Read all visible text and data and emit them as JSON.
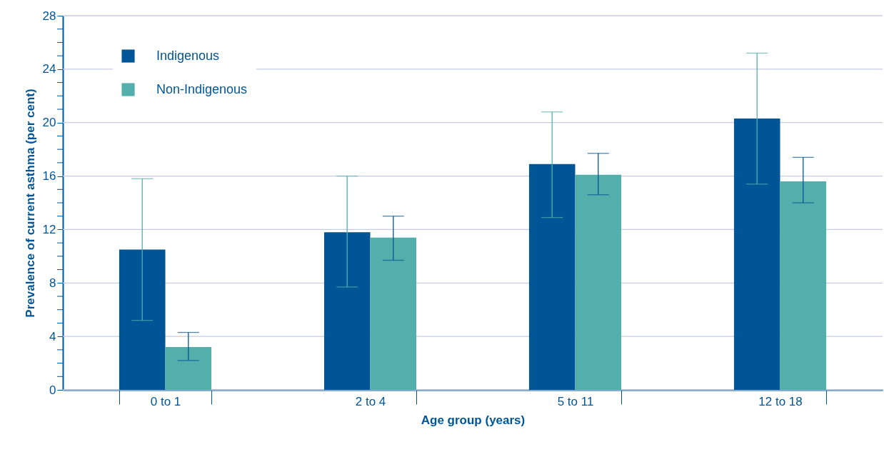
{
  "chart_data": {
    "type": "bar",
    "xlabel": "Age group (years)",
    "ylabel": "Prevalence of current asthma (per cent)",
    "categories": [
      "0 to 1",
      "2 to 4",
      "5 to 11",
      "12 to 18"
    ],
    "series": [
      {
        "name": "Indigenous",
        "color": "#005596",
        "values": [
          10.5,
          11.8,
          16.9,
          20.3
        ],
        "errors": [
          [
            5.2,
            15.8
          ],
          [
            7.7,
            16.0
          ],
          [
            12.9,
            20.8
          ],
          [
            15.4,
            25.2
          ]
        ]
      },
      {
        "name": "Non-Indigenous",
        "color": "#52afab",
        "values": [
          3.2,
          11.4,
          16.1,
          15.6
        ],
        "errors": [
          [
            2.2,
            4.3
          ],
          [
            9.7,
            13.0
          ],
          [
            14.6,
            17.7
          ],
          [
            14.0,
            17.4
          ]
        ]
      }
    ],
    "ylim": [
      0,
      28
    ],
    "yticks": [
      0,
      {
        "value": 1,
        "label": null
      },
      {
        "value": 2,
        "label": null
      },
      {
        "value": 3,
        "label": null
      },
      4,
      {
        "value": 5,
        "label": null
      },
      {
        "value": 6,
        "label": null
      },
      {
        "value": 7,
        "label": null
      },
      8,
      {
        "value": 9,
        "label": null
      },
      {
        "value": 10,
        "label": null
      },
      {
        "value": 11,
        "label": null
      },
      12,
      {
        "value": 13,
        "label": null
      },
      {
        "value": 14,
        "label": null
      },
      {
        "value": 15,
        "label": null
      },
      16,
      {
        "value": 17,
        "label": null
      },
      {
        "value": 18,
        "label": null
      },
      {
        "value": 19,
        "label": null
      },
      20,
      {
        "value": 21,
        "label": null
      },
      {
        "value": 22,
        "label": null
      },
      {
        "value": 23,
        "label": null
      },
      24,
      {
        "value": 25,
        "label": null
      },
      {
        "value": 26,
        "label": null
      },
      {
        "value": 27,
        "label": null
      },
      28
    ],
    "grid": "y",
    "legend": "top left"
  }
}
